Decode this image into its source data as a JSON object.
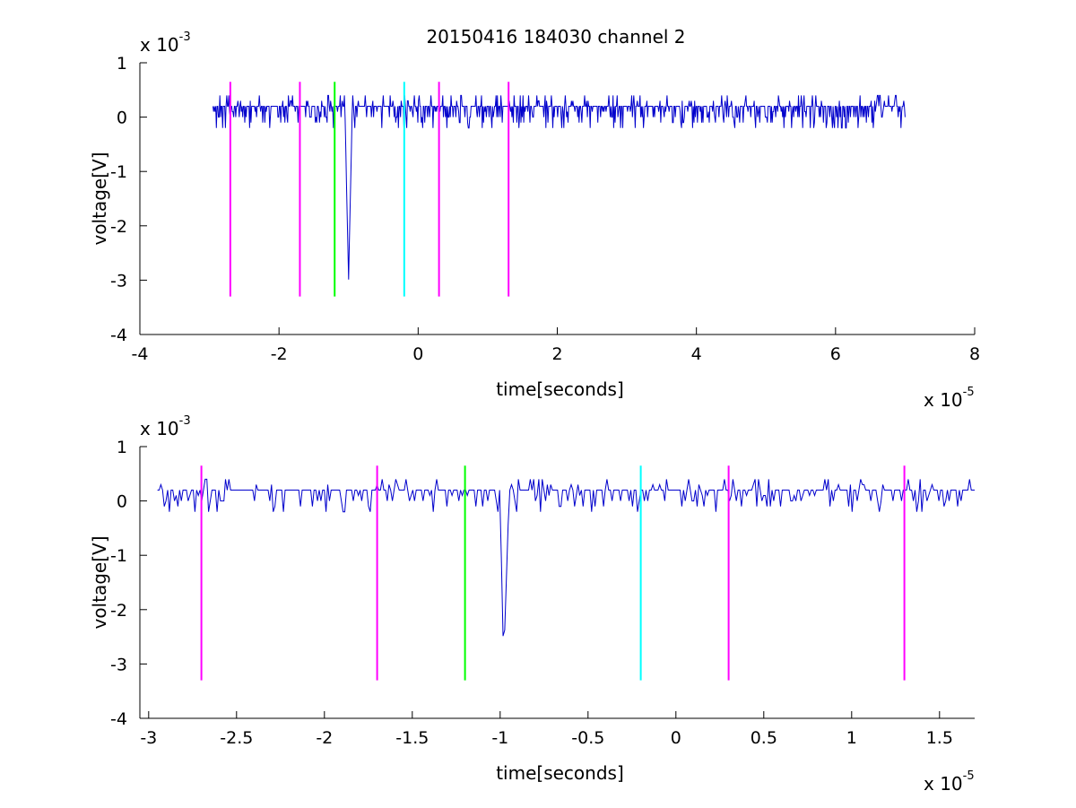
{
  "figure": {
    "title": "20150416 184030 channel 2"
  },
  "chart_data": [
    {
      "type": "line",
      "title": "20150416 184030 channel 2",
      "xlabel": "time[seconds]",
      "ylabel": "voltage[V]",
      "x_multiplier": "x 10",
      "x_exponent": "-5",
      "y_multiplier": "x 10",
      "y_exponent": "-3",
      "xlim": [
        -4,
        8
      ],
      "ylim": [
        -4,
        1
      ],
      "x_ticks": [
        -4,
        -2,
        0,
        2,
        4,
        6,
        8
      ],
      "x_tick_labels": [
        "-4",
        "-2",
        "0",
        "2",
        "4",
        "6",
        "8"
      ],
      "y_ticks": [
        1,
        0,
        -1,
        -2,
        -3,
        -4
      ],
      "y_tick_labels": [
        "1",
        "0",
        "-1",
        "-2",
        "-3",
        "-4"
      ],
      "grid": false,
      "signal": {
        "color": "#0000cc",
        "x_start": -2.95,
        "x_end": 7.0,
        "noise_amplitude": 0.2,
        "spike": {
          "x_start": -1.05,
          "x_min": -1.0,
          "x_end": -0.95,
          "y_min": -3.0
        }
      },
      "markers": [
        {
          "x": -2.7,
          "color": "#ff00ff",
          "y_top": 0.65,
          "y_bottom": -3.3
        },
        {
          "x": -1.7,
          "color": "#ff00ff",
          "y_top": 0.65,
          "y_bottom": -3.3
        },
        {
          "x": -1.2,
          "color": "#00ff00",
          "y_top": 0.65,
          "y_bottom": -3.3
        },
        {
          "x": -0.2,
          "color": "#00ffff",
          "y_top": 0.65,
          "y_bottom": -3.3
        },
        {
          "x": 0.3,
          "color": "#ff00ff",
          "y_top": 0.65,
          "y_bottom": -3.3
        },
        {
          "x": 1.3,
          "color": "#ff00ff",
          "y_top": 0.65,
          "y_bottom": -3.3
        }
      ]
    },
    {
      "type": "line",
      "title": "",
      "xlabel": "time[seconds]",
      "ylabel": "voltage[V]",
      "x_multiplier": "x 10",
      "x_exponent": "-5",
      "y_multiplier": "x 10",
      "y_exponent": "-3",
      "xlim": [
        -3.05,
        1.7
      ],
      "ylim": [
        -4,
        1
      ],
      "x_ticks": [
        -3,
        -2.5,
        -2,
        -1.5,
        -1,
        -0.5,
        0,
        0.5,
        1,
        1.5
      ],
      "x_tick_labels": [
        "-3",
        "-2.5",
        "-2",
        "-1.5",
        "-1",
        "-0.5",
        "0",
        "0.5",
        "1",
        "1.5"
      ],
      "y_ticks": [
        1,
        0,
        -1,
        -2,
        -3,
        -4
      ],
      "y_tick_labels": [
        "1",
        "0",
        "-1",
        "-2",
        "-3",
        "-4"
      ],
      "grid": false,
      "signal": {
        "color": "#0000cc",
        "x_start": -2.95,
        "x_end": 1.7,
        "noise_amplitude": 0.2,
        "spike": {
          "x_start": -1.0,
          "x_min": -0.98,
          "x_end": -0.95,
          "y_min": -3.0
        }
      },
      "markers": [
        {
          "x": -2.7,
          "color": "#ff00ff",
          "y_top": 0.65,
          "y_bottom": -3.3
        },
        {
          "x": -1.7,
          "color": "#ff00ff",
          "y_top": 0.65,
          "y_bottom": -3.3
        },
        {
          "x": -1.2,
          "color": "#00ff00",
          "y_top": 0.65,
          "y_bottom": -3.3
        },
        {
          "x": -0.2,
          "color": "#00ffff",
          "y_top": 0.65,
          "y_bottom": -3.3
        },
        {
          "x": 0.3,
          "color": "#ff00ff",
          "y_top": 0.65,
          "y_bottom": -3.3
        },
        {
          "x": 1.3,
          "color": "#ff00ff",
          "y_top": 0.65,
          "y_bottom": -3.3
        }
      ]
    }
  ]
}
